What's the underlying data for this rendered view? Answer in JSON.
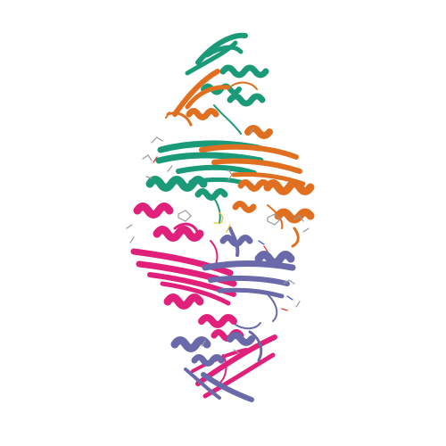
{
  "image": {
    "subject": "protein-ribbon-structure",
    "background": "#ffffff"
  },
  "chains": [
    {
      "name": "chain-a",
      "color": "#e07020"
    },
    {
      "name": "chain-b",
      "color": "#1a9a78"
    },
    {
      "name": "chain-c",
      "color": "#e0207a"
    },
    {
      "name": "chain-d",
      "color": "#6a6aaa"
    }
  ],
  "ligand_colors": {
    "carbon": "#9a9a9a",
    "oxygen": "#e03030",
    "nitrogen": "#3050e0",
    "sulfur": "#e0c020"
  }
}
